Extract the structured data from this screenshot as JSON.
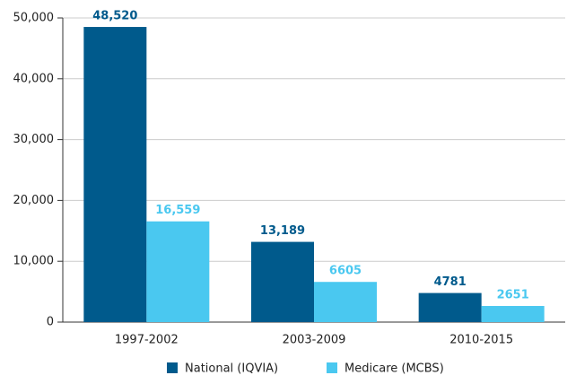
{
  "chart_data": {
    "type": "bar",
    "categories": [
      "1997-2002",
      "2003-2009",
      "2010-2015"
    ],
    "series": [
      {
        "name": "National (IQVIA)",
        "color": "#005a8c",
        "values": [
          48520,
          13189,
          4781
        ],
        "value_labels": [
          "48,520",
          "13,189",
          "4781"
        ]
      },
      {
        "name": "Medicare (MCBS)",
        "color": "#4ac8f0",
        "values": [
          16559,
          6605,
          2651
        ],
        "value_labels": [
          "16,559",
          "6605",
          "2651"
        ]
      }
    ],
    "ylim": [
      0,
      50000
    ],
    "yticks": [
      0,
      {
        "value": 10000,
        "label": "10,000"
      },
      {
        "value": 20000,
        "label": "20,000"
      },
      {
        "value": 30000,
        "label": "30,000"
      },
      {
        "value": 40000,
        "label": "40,000"
      },
      {
        "value": 50000,
        "label": "50,000"
      }
    ],
    "grid": true
  }
}
